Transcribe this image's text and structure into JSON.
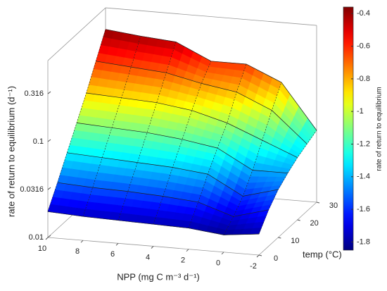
{
  "chart_data": {
    "type": "surface",
    "xlabel": "NPP (mg C m⁻³ d⁻¹)",
    "ylabel": "temp (°C)",
    "zlabel": "rate of return to equilibrium (d⁻¹)",
    "colorbar_label": "rate of return to equilibrium",
    "x": [
      10,
      8,
      6,
      4,
      2,
      0,
      -2
    ],
    "y": [
      0,
      5,
      10,
      15,
      20,
      25,
      30
    ],
    "z": [
      [
        -1.73,
        -1.75,
        -1.76,
        -1.77,
        -1.78,
        -1.82,
        -1.78
      ],
      [
        -1.52,
        -1.54,
        -1.55,
        -1.57,
        -1.6,
        -1.72,
        -1.62
      ],
      [
        -1.3,
        -1.32,
        -1.34,
        -1.36,
        -1.4,
        -1.6,
        -1.5
      ],
      [
        -1.08,
        -1.1,
        -1.12,
        -1.16,
        -1.22,
        -1.42,
        -1.42
      ],
      [
        -0.86,
        -0.88,
        -0.9,
        -0.95,
        -1.05,
        -1.2,
        -1.35
      ],
      [
        -0.62,
        -0.65,
        -0.68,
        -0.76,
        -0.82,
        -0.98,
        -1.3
      ],
      [
        -0.38,
        -0.42,
        -0.45,
        -0.62,
        -0.62,
        -0.78,
        -1.25
      ]
    ],
    "xlim": [
      10,
      -2
    ],
    "xticks": [
      10,
      8,
      6,
      4,
      2,
      0,
      -2
    ],
    "ylim": [
      0,
      30
    ],
    "yticks": [
      0,
      10,
      20,
      30
    ],
    "zscale": "log",
    "zlim": [
      0.01,
      0.7
    ],
    "zticks": [
      0.01,
      0.0316,
      0.1,
      0.316
    ],
    "clim": [
      -1.85,
      -0.36
    ],
    "cticks": [
      -1.8,
      -1.6,
      -1.4,
      -1.2,
      -1,
      -0.8,
      -0.6,
      -0.4
    ],
    "colormap": "jet"
  }
}
